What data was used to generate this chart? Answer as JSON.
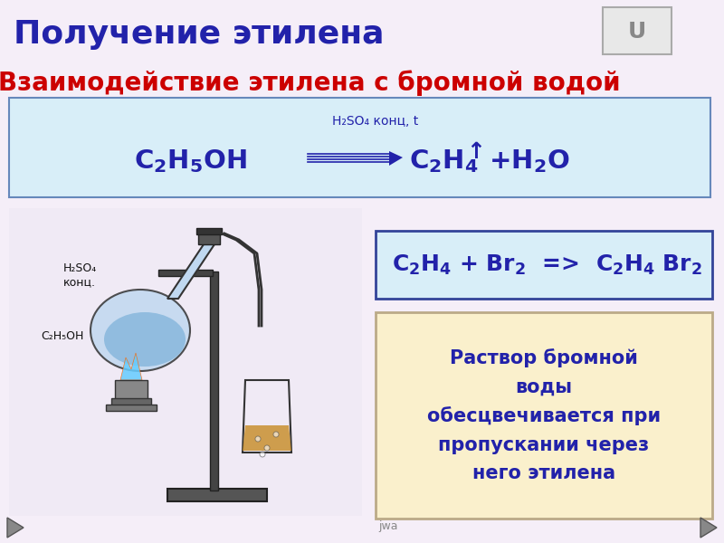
{
  "bg_color": "#f5eef8",
  "title": "Получение этилена",
  "title_color": "#2222aa",
  "title_fontsize": 26,
  "subtitle": "Взаимодействие этилена с бромной водой",
  "subtitle_color": "#cc0000",
  "subtitle_fontsize": 20,
  "reaction_box_color": "#d8eef8",
  "reaction_box_border": "#6688bb",
  "reaction_condition": "H₂SO₄ конц, t",
  "reaction_color": "#2222aa",
  "bromide_box_color": "#d8eef8",
  "bromide_box_border": "#334499",
  "bromide_color": "#2222aa",
  "note_box_color": "#faf0cc",
  "note_box_border": "#bbaa88",
  "note_text": "Раствор бромной\nводы\nобесцвечивается при\nпропускании через\nнего этилена",
  "note_color": "#2222aa",
  "nav_color": "#888888",
  "u_box_color": "#e8e8e8",
  "u_box_border": "#aaaaaa"
}
